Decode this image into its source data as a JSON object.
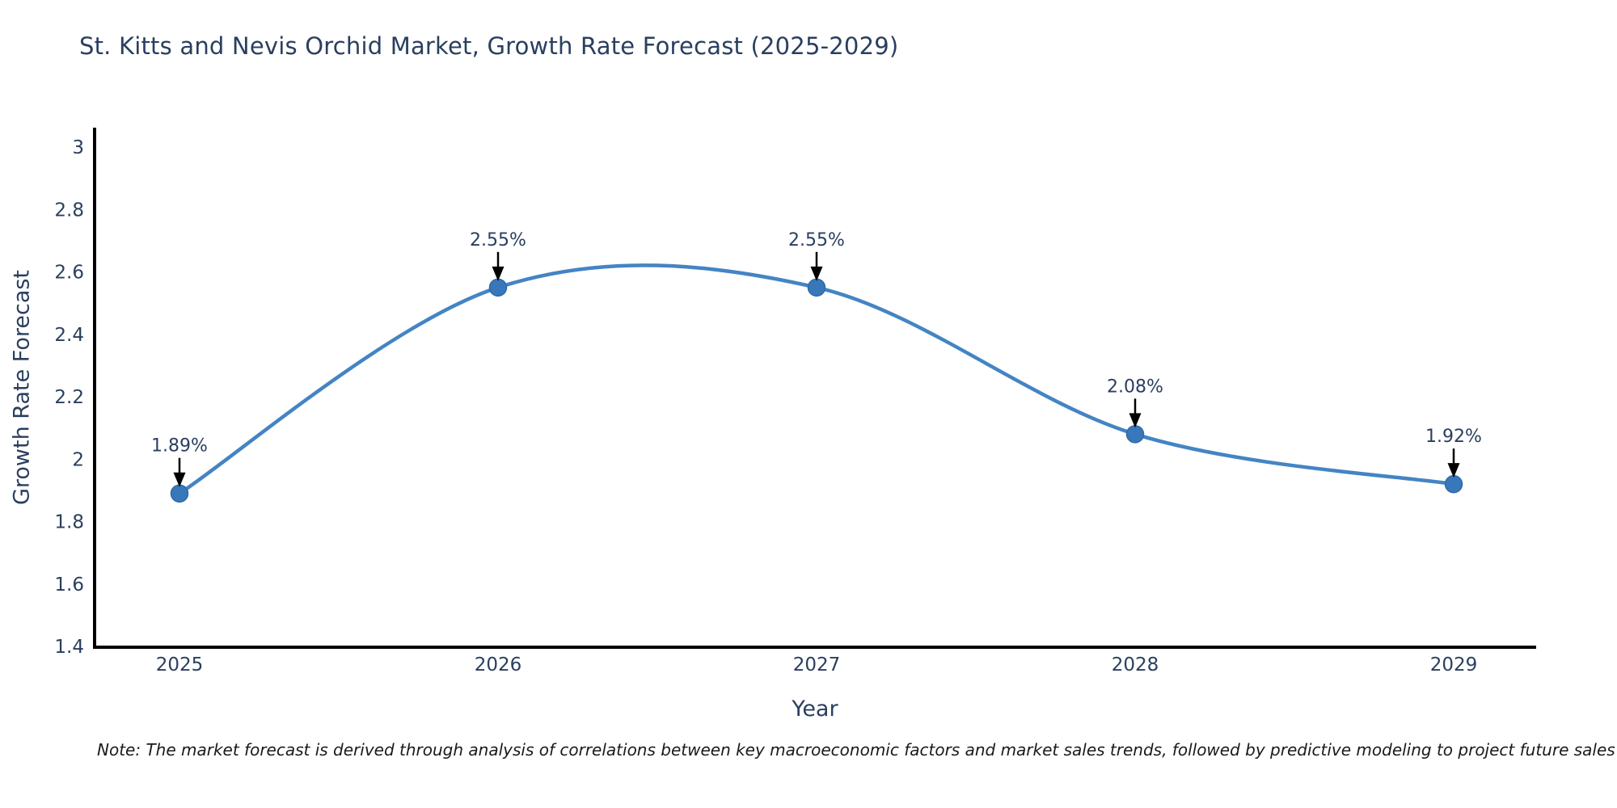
{
  "chart_data": {
    "type": "line",
    "title": "St. Kitts and Nevis Orchid Market, Growth Rate Forecast (2025-2029)",
    "x": [
      "2025",
      "2026",
      "2027",
      "2028",
      "2029"
    ],
    "y": [
      1.89,
      2.55,
      2.55,
      2.08,
      1.92
    ],
    "point_labels": [
      "1.89%",
      "2.55%",
      "2.55%",
      "2.08%",
      "1.92%"
    ],
    "xlabel": "Year",
    "ylabel": "Growth Rate Forecast",
    "yticks": [
      "3",
      "2.8",
      "2.6",
      "2.4",
      "2.2",
      "2",
      "1.8",
      "1.6",
      "1.4"
    ],
    "ytick_values": [
      3,
      2.8,
      2.6,
      2.4,
      2.2,
      2,
      1.8,
      1.6,
      1.4
    ],
    "ylim": [
      1.4,
      3.07
    ],
    "grid": false,
    "legend": false,
    "line_shape": "spline",
    "annotation_arrows": true,
    "note": "Note: The market forecast is derived through analysis of correlations between key macroeconomic factors and market sales trends, followed by predictive modeling to project future sales",
    "colors": {
      "line": "#4484c4",
      "marker": "#3878ba",
      "marker_edge": "#2e6aa6",
      "axis": "#000000",
      "text": "#2a3f5f",
      "note_text": "#1a1a1a"
    }
  }
}
